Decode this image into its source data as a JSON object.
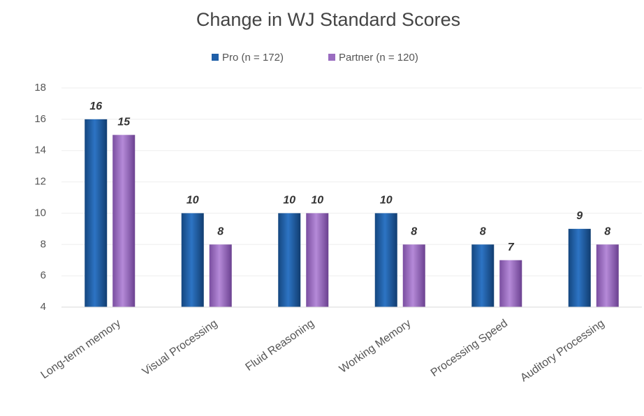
{
  "chart_data": {
    "type": "bar",
    "title": "Change in WJ Standard Scores",
    "categories": [
      "Long-term memory",
      "Visual Processing",
      "Fluid Reasoning",
      "Working Memory",
      "Processing Speed",
      "Auditory Processing"
    ],
    "series": [
      {
        "name": "Pro (n = 172)",
        "color": "#1f5fa8",
        "values": [
          16,
          10,
          10,
          10,
          8,
          9
        ]
      },
      {
        "name": "Partner (n = 120)",
        "color": "#9a6cc0",
        "values": [
          15,
          8,
          10,
          8,
          7,
          8
        ]
      }
    ],
    "ylim": [
      4,
      18
    ],
    "yticks": [
      4,
      6,
      8,
      10,
      12,
      14,
      16,
      18
    ],
    "grid": true,
    "legend": "top"
  }
}
